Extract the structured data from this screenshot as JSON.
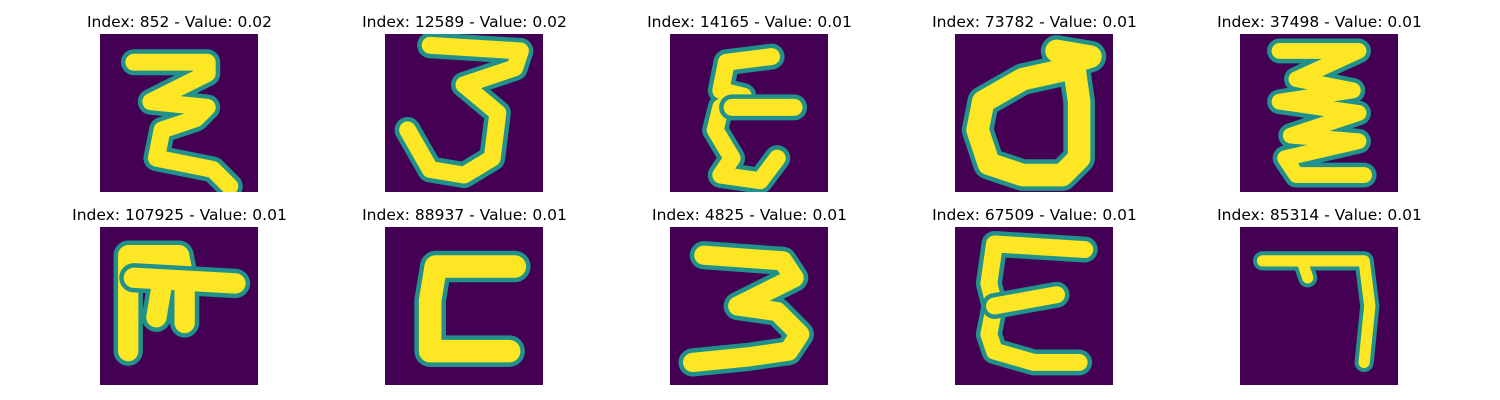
{
  "colors": {
    "background": "#440154",
    "mid": "#21918c",
    "stroke": "#fde725",
    "edge": "#5ec962"
  },
  "panels": [
    {
      "title": "Index: 852 - Value: 0.02",
      "glyph": "z-loop-upper"
    },
    {
      "title": "Index: 12589 - Value: 0.02",
      "glyph": "cursive-three"
    },
    {
      "title": "Index: 14165 - Value: 0.01",
      "glyph": "epsilon-narrow"
    },
    {
      "title": "Index: 73782 - Value: 0.01",
      "glyph": "loop-d"
    },
    {
      "title": "Index: 37498 - Value: 0.01",
      "glyph": "zigzag-z"
    },
    {
      "title": "Index: 107925 - Value: 0.01",
      "glyph": "f-shape"
    },
    {
      "title": "Index: 88937 - Value: 0.01",
      "glyph": "bracket-l"
    },
    {
      "title": "Index: 4825 - Value: 0.01",
      "glyph": "block-three"
    },
    {
      "title": "Index: 67509 - Value: 0.01",
      "glyph": "epsilon-wide"
    },
    {
      "title": "Index: 85314 - Value: 0.01",
      "glyph": "seven-hook"
    }
  ]
}
